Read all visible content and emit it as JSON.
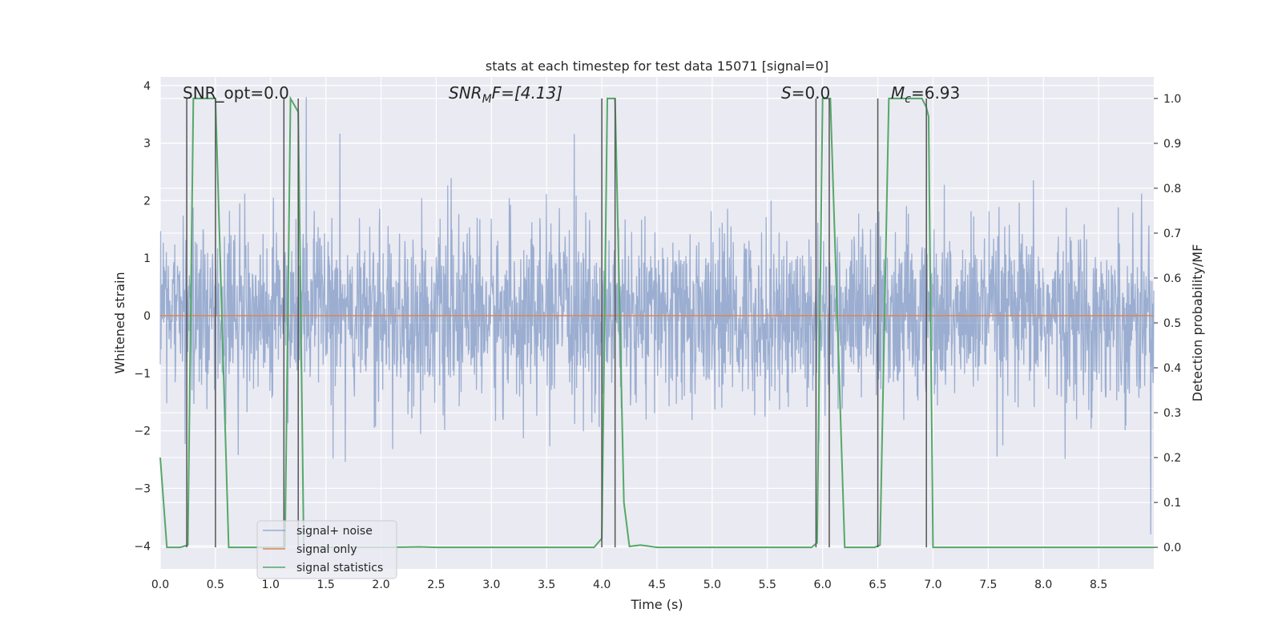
{
  "chart_data": {
    "type": "line",
    "title": "stats at each timestep for test data 15071 [signal=0]",
    "xlabel": "Time (s)",
    "ylabel": "Whitened strain",
    "y2label": "Detection probability/MF",
    "xlim": [
      0,
      9.0
    ],
    "ylim": [
      -4.4,
      4.15
    ],
    "y2lim": [
      -0.048,
      1.048
    ],
    "xticks": [
      "0.0",
      "0.5",
      "1.0",
      "1.5",
      "2.0",
      "2.5",
      "3.0",
      "3.5",
      "4.0",
      "4.5",
      "5.0",
      "5.5",
      "6.0",
      "6.5",
      "7.0",
      "7.5",
      "8.0",
      "8.5"
    ],
    "xtick_values": [
      0,
      0.5,
      1,
      1.5,
      2,
      2.5,
      3,
      3.5,
      4,
      4.5,
      5,
      5.5,
      6,
      6.5,
      7,
      7.5,
      8,
      8.5
    ],
    "yticks": [
      "−4",
      "−3",
      "−2",
      "−1",
      "0",
      "1",
      "2",
      "3",
      "4"
    ],
    "ytick_values": [
      -4,
      -3,
      -2,
      -1,
      0,
      1,
      2,
      3,
      4
    ],
    "y2ticks": [
      "0.0",
      "0.1",
      "0.2",
      "0.3",
      "0.4",
      "0.5",
      "0.6",
      "0.7",
      "0.8",
      "0.9",
      "1.0"
    ],
    "y2tick_values": [
      0,
      0.1,
      0.2,
      0.3,
      0.4,
      0.5,
      0.6,
      0.7,
      0.8,
      0.9,
      1.0
    ],
    "grid": true,
    "legend_position": "bottom-left",
    "annotations": {
      "snr_opt": "SNR_opt=0.0",
      "snr_mf_base": "SNR",
      "snr_mf_sub": "M",
      "snr_mf_rest": "F=[4.13]",
      "s_sym": "S",
      "s_rest": "=0.0",
      "mc_sym": "M",
      "mc_sub": "c",
      "mc_rest": "=6.93"
    },
    "series": [
      {
        "name": "signal+ noise",
        "color": "#4c72b0",
        "axis": "left",
        "description_kind": "noise",
        "x_range": [
          0,
          9.0
        ],
        "std": 0.75,
        "peak_abs_max": 3.8
      },
      {
        "name": "signal only",
        "color": "#dd8452",
        "axis": "left",
        "x": [
          0,
          9.0
        ],
        "y": [
          0,
          0
        ]
      },
      {
        "name": "signal statistics",
        "color": "#55a868",
        "axis": "right",
        "x": [
          0.0,
          0.06,
          0.18,
          0.25,
          0.3,
          0.5,
          0.62,
          0.75,
          1.0,
          1.13,
          1.18,
          1.25,
          1.3,
          1.5,
          2.0,
          2.35,
          2.5,
          3.0,
          3.5,
          3.93,
          4.0,
          4.05,
          4.12,
          4.2,
          4.25,
          4.35,
          4.5,
          5.0,
          5.5,
          5.9,
          5.95,
          6.0,
          6.07,
          6.2,
          6.3,
          6.47,
          6.52,
          6.6,
          6.9,
          6.94,
          6.96,
          7.0,
          7.5,
          8.0,
          8.5,
          9.0
        ],
        "y": [
          0.2,
          0.0,
          0.0,
          0.005,
          1.0,
          1.0,
          0.0,
          0.0,
          0.0,
          0.0,
          1.0,
          0.97,
          0.0,
          0.0,
          0.0,
          0.001,
          0.0,
          0.0,
          0.0,
          0.0,
          0.02,
          1.0,
          1.0,
          0.1,
          0.002,
          0.005,
          0.0,
          0.0,
          0.0,
          0.0,
          0.01,
          1.0,
          1.0,
          0.0,
          0.0,
          0.0,
          0.005,
          1.0,
          1.0,
          0.98,
          0.96,
          0.0,
          0.0,
          0.0,
          0.0,
          0.0
        ]
      }
    ],
    "event_lines": [
      {
        "x": 0.24
      },
      {
        "x": 0.5
      },
      {
        "x": 1.12
      },
      {
        "x": 1.25
      },
      {
        "x": 4.0
      },
      {
        "x": 4.12
      },
      {
        "x": 5.94
      },
      {
        "x": 6.06
      },
      {
        "x": 6.5
      },
      {
        "x": 6.94
      }
    ]
  }
}
